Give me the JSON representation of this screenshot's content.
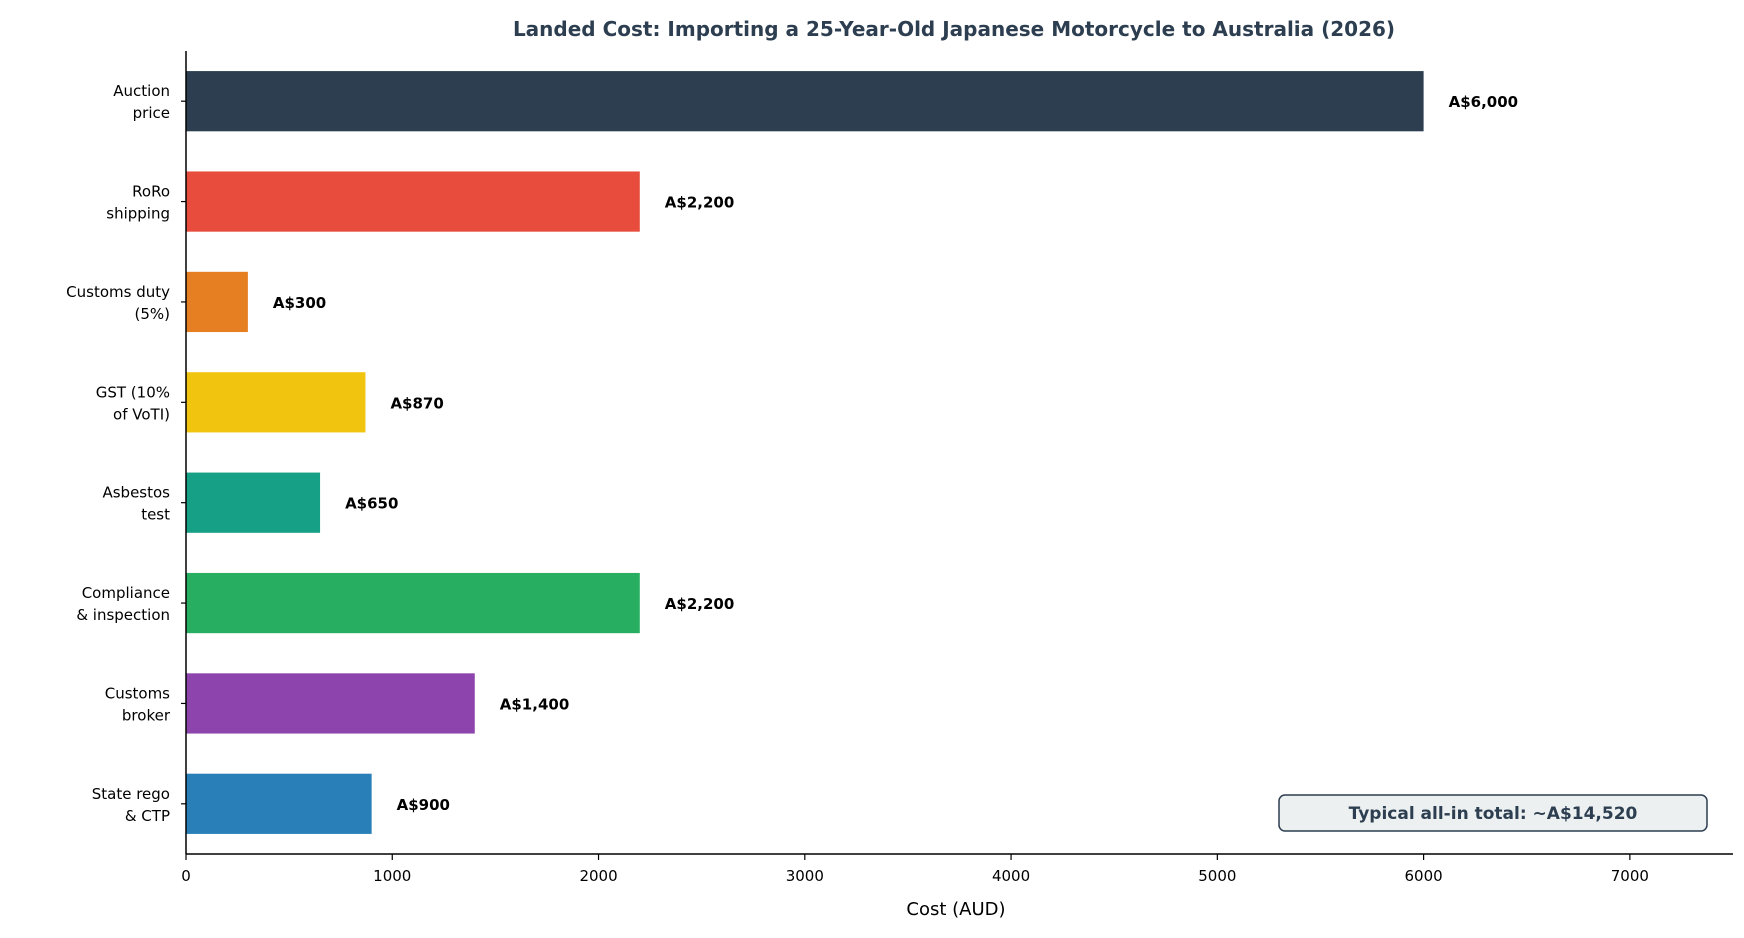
{
  "chart_data": {
    "type": "bar",
    "orientation": "horizontal",
    "title": "Landed Cost: Importing a 25-Year-Old Japanese Motorcycle to Australia (2026)",
    "xlabel": "Cost (AUD)",
    "ylabel": "",
    "xlim": [
      0,
      7500
    ],
    "xticks": [
      0,
      1000,
      2000,
      3000,
      4000,
      5000,
      6000,
      7000
    ],
    "grid": false,
    "categories": [
      [
        "Auction",
        "price"
      ],
      [
        "RoRo",
        "shipping"
      ],
      [
        "Customs duty",
        "(5%)"
      ],
      [
        "GST (10%",
        "of VoTI)"
      ],
      [
        "Asbestos",
        "test"
      ],
      [
        "Compliance",
        "& inspection"
      ],
      [
        "Customs",
        "broker"
      ],
      [
        "State rego",
        "& CTP"
      ]
    ],
    "values": [
      6000,
      2200,
      300,
      870,
      650,
      2200,
      1400,
      900
    ],
    "value_labels": [
      "A$6,000",
      "A$2,200",
      "A$300",
      "A$870",
      "A$650",
      "A$2,200",
      "A$1,400",
      "A$900"
    ],
    "colors": [
      "#2c3e50",
      "#e74c3c",
      "#e67e22",
      "#f1c40f",
      "#16a085",
      "#27ae60",
      "#8e44ad",
      "#2980b9"
    ],
    "annotation": "Typical all-in total: ~A$14,520"
  }
}
